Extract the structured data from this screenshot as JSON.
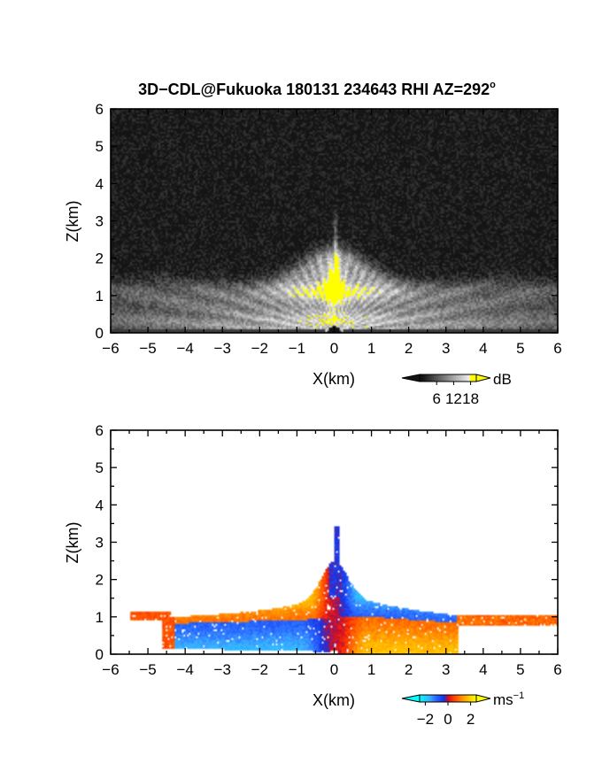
{
  "title": {
    "text": "3D−CDL@Fukuoka 180131 234643 RHI AZ=292",
    "degree_symbol": "o"
  },
  "chart_data": [
    {
      "type": "heatmap",
      "variable": "power",
      "xlabel": "X(km)",
      "ylabel": "Z(km)",
      "xlim": [
        -6,
        6
      ],
      "ylim": [
        0,
        6
      ],
      "xticks": [
        "−6",
        "−5",
        "−4",
        "−3",
        "−2",
        "−1",
        "0",
        "1",
        "2",
        "3",
        "4",
        "5",
        "6"
      ],
      "yticks": [
        "0",
        "1",
        "2",
        "3",
        "4",
        "5",
        "6"
      ],
      "colorbar": {
        "unit": "dB",
        "ticks": [
          "6",
          "12",
          "18"
        ],
        "range": [
          0,
          20
        ]
      },
      "colors": {
        "background": "#1a1a1a",
        "max": "#ffff00"
      }
    },
    {
      "type": "heatmap",
      "variable": "doppler_velocity",
      "xlabel": "X(km)",
      "ylabel": "Z(km)",
      "xlim": [
        -6,
        6
      ],
      "ylim": [
        0,
        6
      ],
      "xticks": [
        "−6",
        "−5",
        "−4",
        "−3",
        "−2",
        "−1",
        "0",
        "1",
        "2",
        "3",
        "4",
        "5",
        "6"
      ],
      "yticks": [
        "0",
        "1",
        "2",
        "3",
        "4",
        "5",
        "6"
      ],
      "colorbar": {
        "unit": "ms",
        "unit_exponent": "−1",
        "ticks": [
          "−2",
          "0",
          "2"
        ],
        "range": [
          -2.5,
          2.5
        ]
      },
      "colors": {
        "negative_max": "#00ffff",
        "negative": "#0044ff",
        "zero": "#cc0000",
        "positive": "#ff8800",
        "positive_max": "#ffff00"
      }
    }
  ]
}
